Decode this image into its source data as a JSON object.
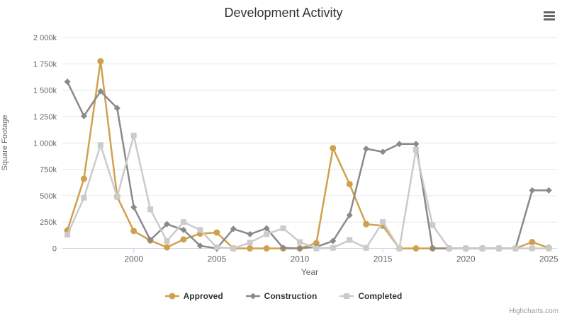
{
  "header": {
    "title": "Development Activity",
    "menu_icon": "hamburger-menu-icon"
  },
  "credit": {
    "label": "Highcharts.com"
  },
  "chart_data": {
    "type": "line",
    "title": "Development Activity",
    "xlabel": "Year",
    "ylabel": "Square Footage",
    "grid": true,
    "legend_position": "bottom-center",
    "xlim": [
      1995.7,
      2025.5
    ],
    "ylim_k": [
      0,
      2000
    ],
    "x_ticks": [
      2000,
      2005,
      2010,
      2015,
      2020,
      2025
    ],
    "y_ticks_k": [
      0,
      250,
      500,
      750,
      1000,
      1250,
      1500,
      1750,
      2000
    ],
    "y_tick_labels": [
      "0",
      "250k",
      "500k",
      "750k",
      "1 000k",
      "1 250k",
      "1 500k",
      "1 750k",
      "2 000k"
    ],
    "years": [
      1996,
      1997,
      1998,
      1999,
      2000,
      2001,
      2002,
      2003,
      2004,
      2005,
      2006,
      2007,
      2008,
      2009,
      2010,
      2011,
      2012,
      2013,
      2014,
      2015,
      2016,
      2017,
      2018,
      2019,
      2020,
      2021,
      2022,
      2023,
      2024,
      2025
    ],
    "series": [
      {
        "name": "Approved",
        "color": "#CFA14E",
        "marker": "circle",
        "values_k": [
          170,
          660,
          1775,
          490,
          165,
          75,
          10,
          85,
          140,
          150,
          0,
          0,
          0,
          0,
          0,
          50,
          950,
          610,
          230,
          215,
          0,
          0,
          0,
          0,
          0,
          0,
          0,
          0,
          60,
          5
        ]
      },
      {
        "name": "Construction",
        "color": "#8A8A8A",
        "marker": "diamond",
        "values_k": [
          1580,
          1255,
          1490,
          1330,
          390,
          80,
          230,
          175,
          25,
          0,
          185,
          135,
          190,
          5,
          0,
          15,
          70,
          315,
          945,
          915,
          990,
          990,
          0,
          0,
          0,
          0,
          0,
          0,
          550,
          550
        ]
      },
      {
        "name": "Completed",
        "color": "#CBCBCB",
        "marker": "square",
        "values_k": [
          130,
          480,
          980,
          490,
          1070,
          370,
          70,
          250,
          175,
          10,
          0,
          55,
          135,
          190,
          60,
          0,
          5,
          80,
          5,
          250,
          0,
          935,
          220,
          0,
          0,
          0,
          0,
          0,
          0,
          0
        ]
      }
    ],
    "colors": {
      "grid_line": "#E6E6E6",
      "axis_line": "#CCD6EB",
      "tick_label": "#666666",
      "title_text": "#333333",
      "legend_text": "#333333",
      "credit_text": "#999999"
    }
  }
}
